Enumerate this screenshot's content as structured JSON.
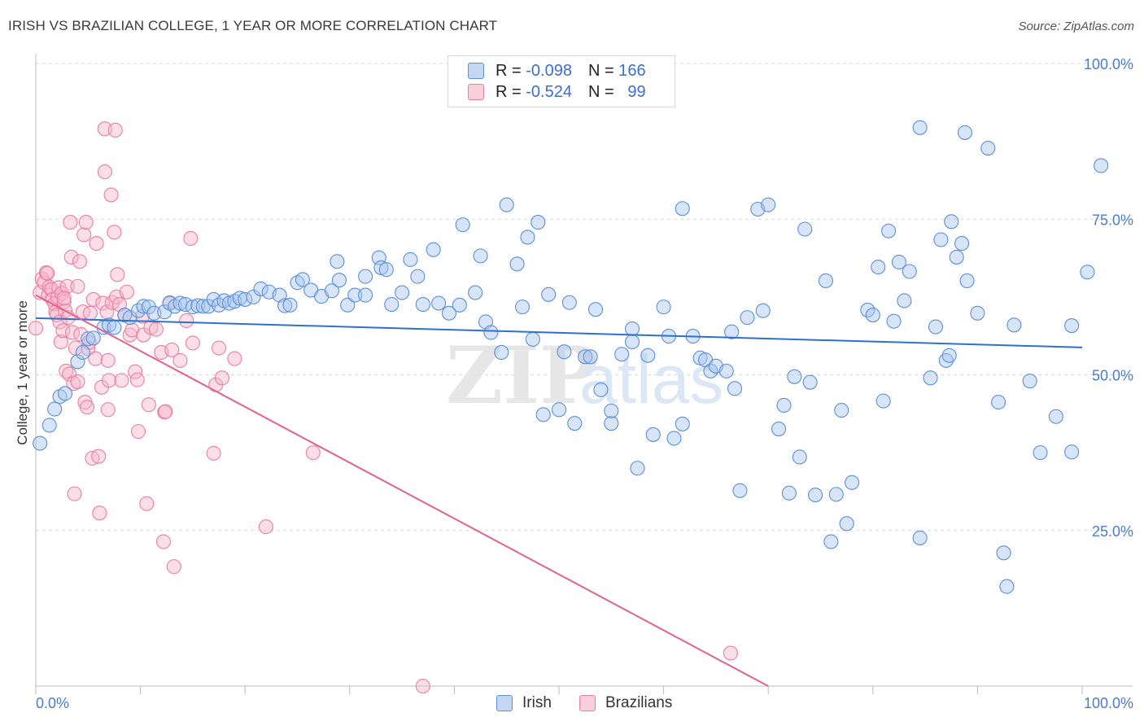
{
  "title": "IRISH VS BRAZILIAN COLLEGE, 1 YEAR OR MORE CORRELATION CHART",
  "source": "Source: ZipAtlas.com",
  "watermark": {
    "zip": "ZIP",
    "atlas": "atlas"
  },
  "legend_top": {
    "rows": [
      {
        "r_label": "R =",
        "r_value": "-0.098",
        "n_label": "N =",
        "n_value": "166"
      },
      {
        "r_label": "R =",
        "r_value": "-0.524",
        "n_label": "N =",
        "n_value": "99"
      }
    ]
  },
  "legend_bottom": {
    "irish": "Irish",
    "brazilians": "Brazilians"
  },
  "colors": {
    "irish_fill": "#a9c6f0",
    "irish_stroke": "#5b8fd8",
    "irish_line": "#2f6fcf",
    "braz_fill": "#f6b6c9",
    "braz_stroke": "#e87fa1",
    "braz_line": "#e0628d",
    "grid": "#d9d9d9",
    "tick_text": "#4a7cc9"
  },
  "chart_data": {
    "type": "scatter",
    "title": "IRISH VS BRAZILIAN COLLEGE, 1 YEAR OR MORE CORRELATION CHART",
    "xlabel": "",
    "ylabel": "College, 1 year or more",
    "xlim": [
      0,
      100
    ],
    "ylim": [
      0,
      100
    ],
    "x_tick_labels": [
      "0.0%",
      "100.0%"
    ],
    "y_tick_labels": [
      "25.0%",
      "50.0%",
      "75.0%",
      "100.0%"
    ],
    "y_ticks": [
      25,
      50,
      75,
      100
    ],
    "legend_position": "top-center",
    "grid": true,
    "series": [
      {
        "name": "Irish",
        "r": -0.098,
        "n": 166,
        "trend": {
          "x": [
            0,
            100
          ],
          "y": [
            59.1,
            54.4
          ]
        },
        "points": [
          [
            0.4,
            39
          ],
          [
            1.3,
            41.9
          ],
          [
            1.8,
            44.5
          ],
          [
            2.3,
            46.5
          ],
          [
            2.8,
            47
          ],
          [
            4,
            52.1
          ],
          [
            4.5,
            53.6
          ],
          [
            5,
            55.8
          ],
          [
            5.5,
            55.9
          ],
          [
            6.5,
            57.6
          ],
          [
            7,
            58
          ],
          [
            7.5,
            57.6
          ],
          [
            8.5,
            59.6
          ],
          [
            9,
            59.2
          ],
          [
            9.8,
            60.3
          ],
          [
            10.3,
            61
          ],
          [
            10.8,
            60.9
          ],
          [
            11.3,
            59.9
          ],
          [
            12.3,
            60.1
          ],
          [
            12.8,
            61.5
          ],
          [
            13.3,
            61
          ],
          [
            13.8,
            61.5
          ],
          [
            14.3,
            61.3
          ],
          [
            15,
            60.9
          ],
          [
            15.5,
            61.1
          ],
          [
            16,
            61
          ],
          [
            16.5,
            61
          ],
          [
            17,
            62.1
          ],
          [
            17.5,
            61.2
          ],
          [
            18,
            61.9
          ],
          [
            18.5,
            61.5
          ],
          [
            19,
            61.8
          ],
          [
            19.5,
            62.3
          ],
          [
            20,
            62.1
          ],
          [
            20.8,
            62.5
          ],
          [
            21.5,
            63.8
          ],
          [
            22.3,
            63.3
          ],
          [
            23.3,
            62.8
          ],
          [
            23.8,
            61.1
          ],
          [
            24.3,
            61.2
          ],
          [
            25,
            64.8
          ],
          [
            25.5,
            65.3
          ],
          [
            26.3,
            63.6
          ],
          [
            27.3,
            62.6
          ],
          [
            28.3,
            63.5
          ],
          [
            29,
            65.2
          ],
          [
            28.8,
            68.2
          ],
          [
            29.8,
            61.2
          ],
          [
            30.5,
            62.8
          ],
          [
            31.5,
            62.8
          ],
          [
            31.5,
            65.8
          ],
          [
            32.8,
            68.8
          ],
          [
            33,
            67.2
          ],
          [
            33.5,
            66.9
          ],
          [
            34,
            61.3
          ],
          [
            35,
            63.2
          ],
          [
            35.8,
            68.5
          ],
          [
            36.5,
            65.8
          ],
          [
            37,
            61.3
          ],
          [
            38,
            70.1
          ],
          [
            38.5,
            61.5
          ],
          [
            39.5,
            59.9
          ],
          [
            40.5,
            61.2
          ],
          [
            40.8,
            74.1
          ],
          [
            42,
            63.2
          ],
          [
            42.5,
            69.1
          ],
          [
            43,
            58.5
          ],
          [
            43.5,
            56.8
          ],
          [
            44.5,
            53.6
          ],
          [
            45,
            77.3
          ],
          [
            46,
            67.8
          ],
          [
            46.5,
            60.9
          ],
          [
            47,
            72.1
          ],
          [
            47.5,
            55.7
          ],
          [
            48,
            74.5
          ],
          [
            48.5,
            43.6
          ],
          [
            49,
            62.9
          ],
          [
            50,
            44.4
          ],
          [
            50.5,
            53.7
          ],
          [
            51,
            61.6
          ],
          [
            51.5,
            42.2
          ],
          [
            52.5,
            52.9
          ],
          [
            53,
            52.9
          ],
          [
            53.5,
            60.5
          ],
          [
            54,
            47.6
          ],
          [
            55,
            42.2
          ],
          [
            55,
            44.2
          ],
          [
            56,
            53.3
          ],
          [
            57,
            57.4
          ],
          [
            57,
            55.3
          ],
          [
            57.5,
            35
          ],
          [
            58.5,
            53.1
          ],
          [
            59,
            40.4
          ],
          [
            60,
            60.9
          ],
          [
            60.5,
            56.2
          ],
          [
            61,
            39.8
          ],
          [
            61.8,
            76.7
          ],
          [
            61.8,
            42.1
          ],
          [
            62.8,
            56.2
          ],
          [
            63.5,
            52.7
          ],
          [
            64,
            52.4
          ],
          [
            64.5,
            50.6
          ],
          [
            65,
            51.4
          ],
          [
            66,
            50.6
          ],
          [
            66.5,
            56.9
          ],
          [
            66.8,
            47.8
          ],
          [
            67.3,
            31.4
          ],
          [
            68,
            59.2
          ],
          [
            69,
            76.6
          ],
          [
            69.5,
            60.3
          ],
          [
            70,
            77.3
          ],
          [
            71,
            41.3
          ],
          [
            71.5,
            45.1
          ],
          [
            72,
            31
          ],
          [
            72.5,
            49.7
          ],
          [
            73,
            36.8
          ],
          [
            73.5,
            73.4
          ],
          [
            74,
            48.8
          ],
          [
            74.5,
            30.7
          ],
          [
            75.5,
            65.1
          ],
          [
            76,
            23.2
          ],
          [
            76.5,
            30.8
          ],
          [
            77,
            44.3
          ],
          [
            77.5,
            26.1
          ],
          [
            78,
            32.7
          ],
          [
            79.5,
            60.4
          ],
          [
            80,
            59.6
          ],
          [
            80.5,
            67.3
          ],
          [
            81,
            45.8
          ],
          [
            81.5,
            73.1
          ],
          [
            82,
            58.6
          ],
          [
            82.5,
            68.1
          ],
          [
            83,
            61.9
          ],
          [
            83.5,
            66.6
          ],
          [
            84.5,
            23.8
          ],
          [
            84.5,
            89.7
          ],
          [
            85.5,
            49.5
          ],
          [
            86,
            57.7
          ],
          [
            86.5,
            71.7
          ],
          [
            87,
            52.3
          ],
          [
            87.3,
            53.1
          ],
          [
            87.5,
            74.6
          ],
          [
            88,
            68.9
          ],
          [
            88.5,
            71.1
          ],
          [
            88.8,
            88.9
          ],
          [
            89,
            65.1
          ],
          [
            90,
            59.9
          ],
          [
            91,
            86.4
          ],
          [
            92,
            45.6
          ],
          [
            92.5,
            21.4
          ],
          [
            92.8,
            16
          ],
          [
            93.5,
            58
          ],
          [
            95,
            49
          ],
          [
            96,
            37.5
          ],
          [
            97.5,
            43.3
          ],
          [
            99,
            37.6
          ],
          [
            99,
            57.9
          ],
          [
            100.5,
            66.5
          ],
          [
            101.8,
            83.6
          ]
        ]
      },
      {
        "name": "Brazilians",
        "r": -0.524,
        "n": 99,
        "trend": {
          "x": [
            0,
            70
          ],
          "y": [
            62.8,
            0
          ]
        },
        "points": [
          [
            0,
            57.5
          ],
          [
            0.4,
            63.2
          ],
          [
            0.6,
            65.4
          ],
          [
            0.8,
            64.8
          ],
          [
            1,
            66.4
          ],
          [
            1.2,
            62.8
          ],
          [
            1.3,
            64.1
          ],
          [
            1.5,
            63.7
          ],
          [
            1.6,
            62.1
          ],
          [
            1.8,
            61.4
          ],
          [
            1.9,
            60.1
          ],
          [
            2,
            59.6
          ],
          [
            2.1,
            62.5
          ],
          [
            2.2,
            64
          ],
          [
            2.3,
            58.5
          ],
          [
            2.4,
            55.3
          ],
          [
            2.5,
            63.1
          ],
          [
            2.6,
            57.1
          ],
          [
            2.7,
            61.7
          ],
          [
            2.8,
            60.3
          ],
          [
            2.9,
            50.6
          ],
          [
            3,
            64.2
          ],
          [
            3.1,
            59.2
          ],
          [
            3.2,
            50.1
          ],
          [
            3.3,
            74.5
          ],
          [
            3.4,
            68.9
          ],
          [
            3.5,
            56.8
          ],
          [
            3.6,
            48.6
          ],
          [
            3.7,
            30.9
          ],
          [
            3.8,
            54.3
          ],
          [
            4,
            64.2
          ],
          [
            4,
            48.9
          ],
          [
            4.2,
            68.2
          ],
          [
            4.3,
            56.5
          ],
          [
            4.5,
            60.1
          ],
          [
            4.6,
            72.5
          ],
          [
            4.7,
            45.6
          ],
          [
            4.8,
            74.5
          ],
          [
            4.9,
            44.8
          ],
          [
            5,
            54.2
          ],
          [
            5.2,
            59.9
          ],
          [
            5.4,
            36.6
          ],
          [
            5.5,
            62.1
          ],
          [
            5.7,
            52.6
          ],
          [
            5.8,
            71.1
          ],
          [
            6,
            36.9
          ],
          [
            6.1,
            27.8
          ],
          [
            6.3,
            48
          ],
          [
            6.4,
            61.5
          ],
          [
            6.6,
            82.6
          ],
          [
            6.6,
            89.5
          ],
          [
            6.8,
            60.1
          ],
          [
            6.9,
            44.4
          ],
          [
            7,
            49.1
          ],
          [
            7.2,
            78.9
          ],
          [
            7.3,
            61.6
          ],
          [
            7.5,
            72.9
          ],
          [
            7.6,
            89.3
          ],
          [
            7.7,
            62.5
          ],
          [
            7.8,
            66.1
          ],
          [
            8,
            61.3
          ],
          [
            8.2,
            49.1
          ],
          [
            8.5,
            59.6
          ],
          [
            8.7,
            63.3
          ],
          [
            9,
            56.4
          ],
          [
            9.2,
            57.2
          ],
          [
            9.5,
            50.5
          ],
          [
            9.7,
            49.2
          ],
          [
            9.8,
            40.9
          ],
          [
            10.2,
            59.4
          ],
          [
            10.3,
            56.4
          ],
          [
            10.6,
            29.3
          ],
          [
            10.8,
            45.2
          ],
          [
            11,
            57.6
          ],
          [
            11.5,
            57.3
          ],
          [
            12,
            53.6
          ],
          [
            12.2,
            23.2
          ],
          [
            12.3,
            44
          ],
          [
            12.8,
            61.6
          ],
          [
            13,
            54
          ],
          [
            13.2,
            19.2
          ],
          [
            13.8,
            52.3
          ],
          [
            14.4,
            58.7
          ],
          [
            14.8,
            71.9
          ],
          [
            15,
            55.1
          ],
          [
            17,
            37.4
          ],
          [
            17.2,
            48.4
          ],
          [
            17.5,
            54.3
          ],
          [
            17.8,
            49.5
          ],
          [
            19,
            52.6
          ],
          [
            22,
            25.6
          ],
          [
            26.5,
            37.5
          ],
          [
            37,
            0
          ],
          [
            66.4,
            5.3
          ],
          [
            1.1,
            66.3
          ],
          [
            2.7,
            62.3
          ],
          [
            5.1,
            55.2
          ],
          [
            6.9,
            52.3
          ],
          [
            12.4,
            44.1
          ]
        ]
      }
    ]
  }
}
